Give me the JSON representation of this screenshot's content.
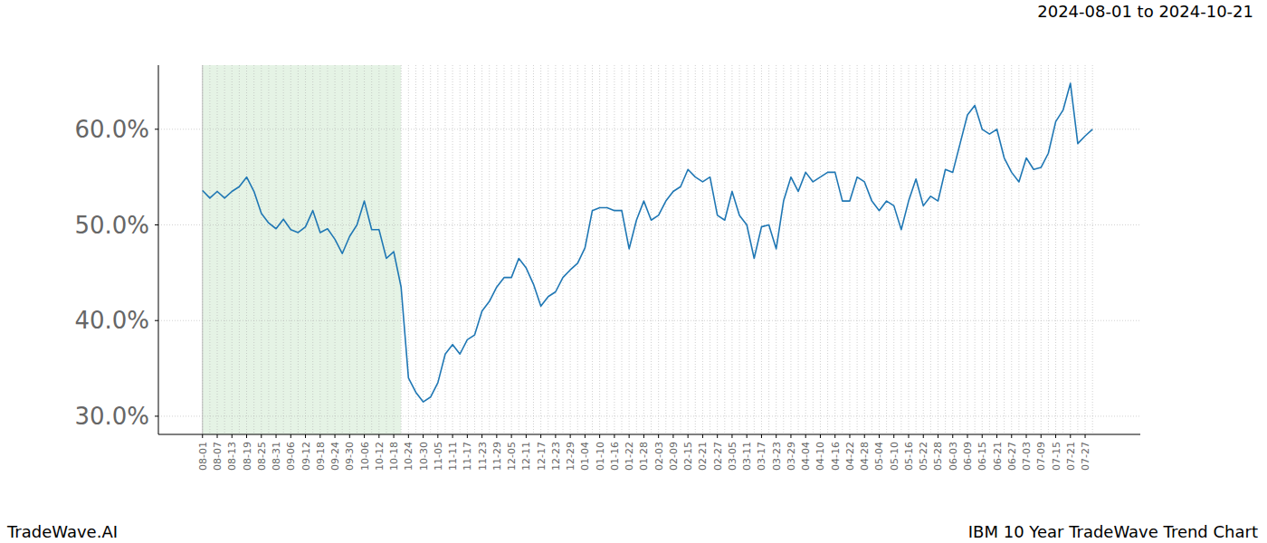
{
  "chart_data": {
    "type": "line",
    "title": "IBM 10 Year TradeWave Trend Chart",
    "subtitle": "2024-08-01 to 2024-10-21",
    "annotations": [
      "TradeWave.AI"
    ],
    "categories": [
      "08-01",
      null,
      "08-07",
      null,
      "08-13",
      null,
      "08-19",
      null,
      "08-25",
      null,
      "08-31",
      null,
      "09-06",
      null,
      "09-12",
      null,
      "09-18",
      null,
      "09-24",
      null,
      "09-30",
      null,
      "10-06",
      null,
      "10-12",
      null,
      "10-18",
      null,
      "10-24",
      null,
      "10-30",
      null,
      "11-05",
      null,
      "11-11",
      null,
      "11-17",
      null,
      "11-23",
      null,
      "11-29",
      null,
      "12-05",
      null,
      "12-11",
      null,
      "12-17",
      null,
      "12-23",
      null,
      "12-29",
      null,
      "01-04",
      null,
      "01-10",
      null,
      "01-16",
      null,
      "01-22",
      null,
      "01-28",
      null,
      "02-03",
      null,
      "02-09",
      null,
      "02-15",
      null,
      "02-21",
      null,
      "02-27",
      null,
      "03-05",
      null,
      "03-11",
      null,
      "03-17",
      null,
      "03-23",
      null,
      "03-29",
      null,
      "04-04",
      null,
      "04-10",
      null,
      "04-16",
      null,
      "04-22",
      null,
      "04-28",
      null,
      "05-04",
      null,
      "05-10",
      null,
      "05-16",
      null,
      "05-22",
      null,
      "05-28",
      null,
      "06-03",
      null,
      "06-09",
      null,
      "06-15",
      null,
      "06-21",
      null,
      "06-27",
      null,
      "07-03",
      null,
      "07-09",
      null,
      "07-15",
      null,
      "07-21",
      null,
      "07-27",
      null
    ],
    "values": [
      53.6,
      52.8,
      53.5,
      52.8,
      53.5,
      54.0,
      55.0,
      53.5,
      51.2,
      50.2,
      49.6,
      50.6,
      49.5,
      49.2,
      49.8,
      51.5,
      49.2,
      49.6,
      48.5,
      47.0,
      48.8,
      50.0,
      52.5,
      49.5,
      49.5,
      46.5,
      47.2,
      43.5,
      34.0,
      32.5,
      31.5,
      32.0,
      33.5,
      36.5,
      37.5,
      36.5,
      38.0,
      38.5,
      41.0,
      42.0,
      43.5,
      44.5,
      44.5,
      46.5,
      45.5,
      43.8,
      41.5,
      42.5,
      43.0,
      44.5,
      45.3,
      46.0,
      47.6,
      51.5,
      51.8,
      51.8,
      51.5,
      51.5,
      47.5,
      50.5,
      52.5,
      50.5,
      51.0,
      52.5,
      53.5,
      54.0,
      55.8,
      55.0,
      54.5,
      55.0,
      51.0,
      50.5,
      53.5,
      51.0,
      50.0,
      46.5,
      49.8,
      50.0,
      47.5,
      52.5,
      55.0,
      53.5,
      55.5,
      54.5,
      55.0,
      55.5,
      55.5,
      52.5,
      52.5,
      55.0,
      54.5,
      52.5,
      51.5,
      52.5,
      52.0,
      49.5,
      52.5,
      54.8,
      52.0,
      53.0,
      52.5,
      55.8,
      55.5,
      58.5,
      61.5,
      62.5,
      60.0,
      59.5,
      60.0,
      57.0,
      55.5,
      54.5,
      57.0,
      55.8,
      56.0,
      57.5,
      60.8,
      62.0,
      64.8,
      58.5,
      59.3,
      60.0
    ],
    "color": "#1f77b4",
    "highlight": [
      0,
      27
    ],
    "xlim": [
      -6.0,
      127.5
    ],
    "ylim": [
      28.1,
      66.7
    ],
    "yticks": [
      {
        "value": 30,
        "label": "30.0%"
      },
      {
        "value": 40,
        "label": "40.0%"
      },
      {
        "value": 50,
        "label": "50.0%"
      },
      {
        "value": 60,
        "label": "60.0%"
      }
    ],
    "grid": true
  }
}
